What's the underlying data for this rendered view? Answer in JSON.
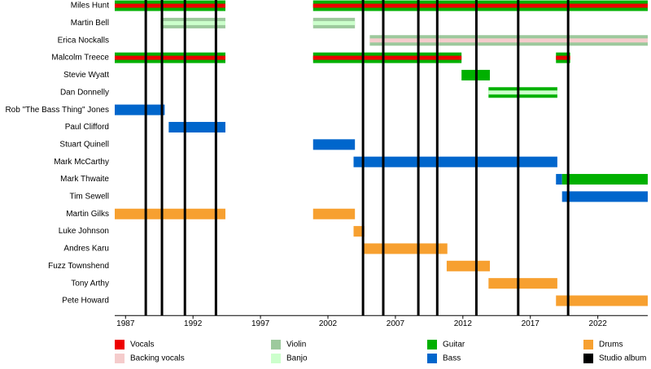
{
  "chart_data": {
    "type": "timeline",
    "xlim": [
      1986.2,
      2025.7
    ],
    "xticks": [
      1987,
      1992,
      1997,
      2002,
      2007,
      2012,
      2017,
      2022
    ],
    "legend": [
      {
        "name": "Vocals",
        "color": "#ee0000"
      },
      {
        "name": "Backing vocals",
        "color": "#f5cccc"
      },
      {
        "name": "Violin",
        "color": "#9dc99d"
      },
      {
        "name": "Banjo",
        "color": "#ccffcc"
      },
      {
        "name": "Guitar",
        "color": "#00b000"
      },
      {
        "name": "Bass",
        "color": "#0066cc"
      },
      {
        "name": "Drums",
        "color": "#f7a030"
      },
      {
        "name": "Studio album",
        "color": "#000000"
      }
    ],
    "albums": [
      1988.5,
      1989.7,
      1991.4,
      1993.7,
      2004.6,
      2006.1,
      2008.7,
      2010.1,
      2013.0,
      2016.1,
      2019.8
    ],
    "members": [
      {
        "name": "Miles Hunt",
        "periods": [
          {
            "start": 1986.2,
            "end": 1994.4,
            "roles": [
              4,
              0
            ]
          },
          {
            "start": 2000.9,
            "end": 2025.7,
            "roles": [
              4,
              0
            ]
          }
        ]
      },
      {
        "name": "Martin Bell",
        "periods": [
          {
            "start": 1989.6,
            "end": 1994.4,
            "roles": [
              2,
              3
            ]
          },
          {
            "start": 2000.9,
            "end": 2004.0,
            "roles": [
              2,
              3
            ]
          }
        ]
      },
      {
        "name": "Erica Nockalls",
        "periods": [
          {
            "start": 2005.1,
            "end": 2025.7,
            "roles": [
              2,
              1
            ]
          }
        ]
      },
      {
        "name": "Malcolm Treece",
        "periods": [
          {
            "start": 1986.2,
            "end": 1994.4,
            "roles": [
              4,
              0
            ]
          },
          {
            "start": 2000.9,
            "end": 2011.9,
            "roles": [
              4,
              0
            ]
          },
          {
            "start": 2018.9,
            "end": 2019.95,
            "roles": [
              4,
              0
            ]
          }
        ]
      },
      {
        "name": "Stevie Wyatt",
        "periods": [
          {
            "start": 2011.9,
            "end": 2014.0,
            "roles": [
              4
            ]
          }
        ]
      },
      {
        "name": "Dan Donnelly",
        "periods": [
          {
            "start": 2013.9,
            "end": 2019.0,
            "roles": [
              4,
              3
            ]
          }
        ]
      },
      {
        "name": "Rob \"The Bass Thing\" Jones",
        "periods": [
          {
            "start": 1986.2,
            "end": 1989.9,
            "roles": [
              5
            ]
          }
        ]
      },
      {
        "name": "Paul Clifford",
        "periods": [
          {
            "start": 1990.2,
            "end": 1994.4,
            "roles": [
              5
            ]
          }
        ]
      },
      {
        "name": "Stuart Quinell",
        "periods": [
          {
            "start": 2000.9,
            "end": 2004.0,
            "roles": [
              5
            ]
          }
        ]
      },
      {
        "name": "Mark McCarthy",
        "periods": [
          {
            "start": 2003.9,
            "end": 2019.0,
            "roles": [
              5
            ]
          }
        ]
      },
      {
        "name": "Mark Thwaite",
        "periods": [
          {
            "start": 2018.9,
            "end": 2019.35,
            "roles": [
              5
            ]
          },
          {
            "start": 2019.35,
            "end": 2025.7,
            "roles": [
              4
            ]
          }
        ]
      },
      {
        "name": "Tim Sewell",
        "periods": [
          {
            "start": 2019.35,
            "end": 2025.7,
            "roles": [
              5
            ]
          }
        ]
      },
      {
        "name": "Martin Gilks",
        "periods": [
          {
            "start": 1986.2,
            "end": 1994.4,
            "roles": [
              6
            ]
          },
          {
            "start": 2000.9,
            "end": 2004.0,
            "roles": [
              6
            ]
          }
        ]
      },
      {
        "name": "Luke Johnson",
        "periods": [
          {
            "start": 2003.9,
            "end": 2004.7,
            "roles": [
              6
            ]
          }
        ]
      },
      {
        "name": "Andres Karu",
        "periods": [
          {
            "start": 2004.65,
            "end": 2010.85,
            "roles": [
              6
            ]
          }
        ]
      },
      {
        "name": "Fuzz Townshend",
        "periods": [
          {
            "start": 2010.8,
            "end": 2014.0,
            "roles": [
              6
            ]
          }
        ]
      },
      {
        "name": "Tony Arthy",
        "periods": [
          {
            "start": 2013.9,
            "end": 2019.0,
            "roles": [
              6
            ]
          }
        ]
      },
      {
        "name": "Pete Howard",
        "periods": [
          {
            "start": 2018.9,
            "end": 2025.7,
            "roles": [
              6
            ]
          }
        ]
      }
    ]
  }
}
